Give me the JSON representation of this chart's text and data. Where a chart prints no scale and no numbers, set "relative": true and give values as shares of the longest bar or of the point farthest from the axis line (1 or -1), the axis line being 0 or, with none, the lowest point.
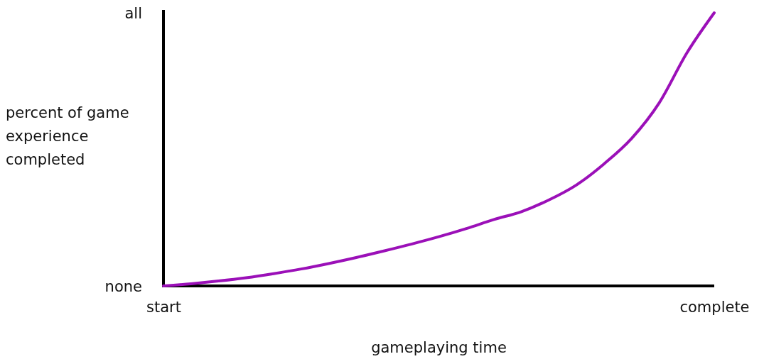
{
  "chart_data": {
    "type": "line",
    "xlabel": "gameplaying time",
    "ylabel": "percent of game experience completed",
    "relative": true,
    "categories": [
      "start",
      null,
      null,
      null,
      null,
      null,
      null,
      null,
      null,
      null,
      null,
      null,
      null,
      null,
      null,
      null,
      null,
      null,
      null,
      null,
      "complete"
    ],
    "annotations": [
      "all",
      "none"
    ],
    "series": [
      {
        "color": "#9b10b8",
        "values": [
          0,
          0.008,
          0.018,
          0.03,
          0.045,
          0.062,
          0.082,
          0.104,
          0.128,
          0.153,
          0.18,
          0.21,
          0.243,
          0.272,
          0.315,
          0.37,
          0.447,
          0.54,
          0.67,
          0.852,
          1
        ]
      }
    ],
    "grid": false,
    "marker": "none",
    "line_style": "solid"
  }
}
